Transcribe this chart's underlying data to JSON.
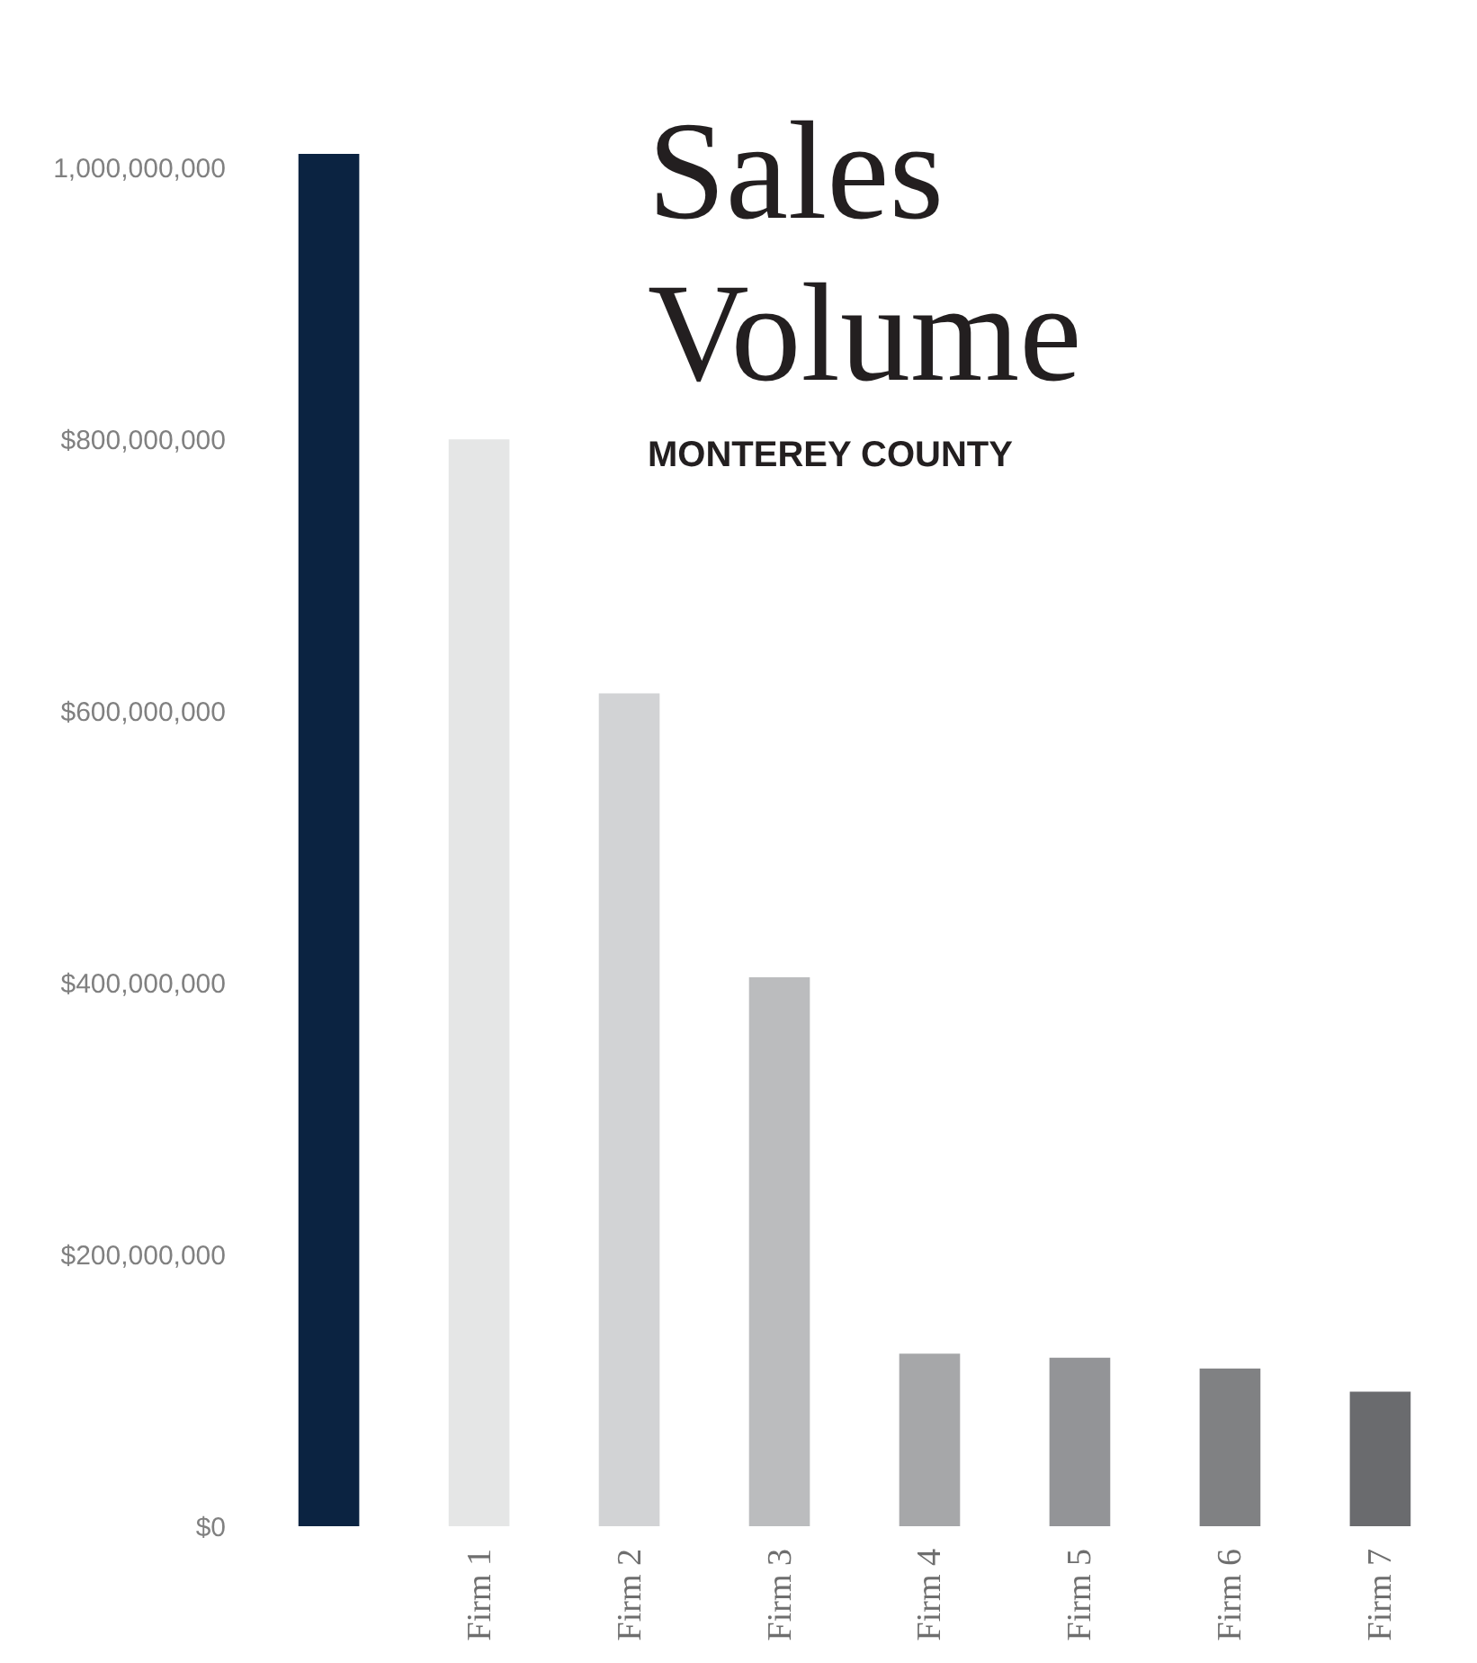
{
  "chart_data": {
    "type": "bar",
    "title": "Sales Volume",
    "subtitle": "MONTEREY COUNTY",
    "categories": [
      null,
      "Firm 1",
      "Firm 2",
      "Firm 3",
      "Firm 4",
      "Firm 5",
      "Firm 6",
      "Firm 7"
    ],
    "values": [
      1010000000,
      800000000,
      613000000,
      404000000,
      127000000,
      124000000,
      116000000,
      99000000
    ],
    "colors": [
      "#0b2341",
      "#e5e6e6",
      "#d2d3d5",
      "#bbbcbe",
      "#a6a7a9",
      "#939497",
      "#808183",
      "#6a6b6e"
    ],
    "ylim": [
      0,
      1020000000
    ],
    "yticks": [
      {
        "value": 0,
        "label": "$0"
      },
      {
        "value": 200000000,
        "label": "$200,000,000"
      },
      {
        "value": 400000000,
        "label": "$400,000,000"
      },
      {
        "value": 600000000,
        "label": "$600,000,000"
      },
      {
        "value": 800000000,
        "label": "$800,000,000"
      },
      {
        "value": 1000000000,
        "label": "1,000,000,000"
      }
    ],
    "grid": false
  }
}
